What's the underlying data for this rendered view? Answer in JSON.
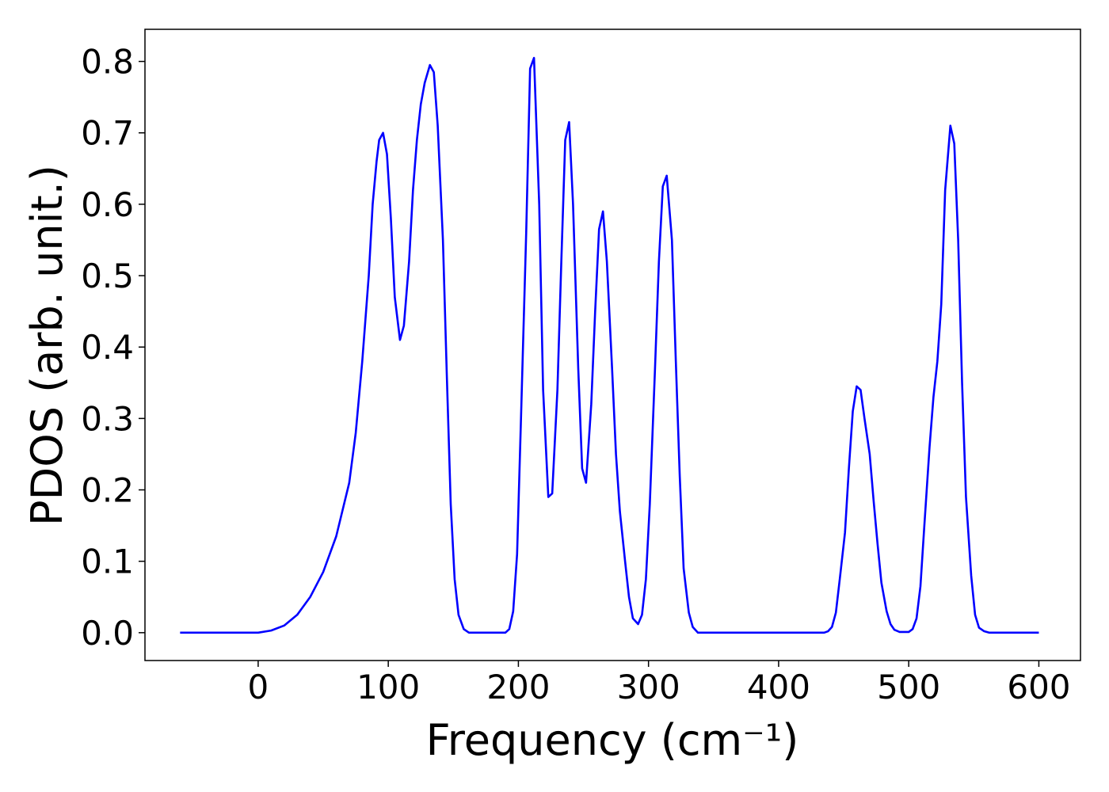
{
  "chart_data": {
    "type": "line",
    "xlabel": "Frequency (cm⁻¹)",
    "ylabel": "PDOS (arb. unit.)",
    "xlim": [
      -87,
      632
    ],
    "ylim": [
      -0.039,
      0.845
    ],
    "xticks": [
      0,
      100,
      200,
      300,
      400,
      500,
      600
    ],
    "yticks": [
      {
        "value": 0,
        "label": "0.0"
      },
      0.1,
      0.2,
      0.3,
      0.4,
      0.5,
      0.6,
      0.7,
      0.8
    ],
    "grid": false,
    "series": [
      {
        "color": "#0000ff",
        "x": [
          -60,
          0,
          10,
          20,
          30,
          40,
          50,
          60,
          70,
          75,
          80,
          85,
          88,
          91,
          93,
          96,
          99,
          102,
          105,
          109,
          112,
          116,
          119,
          122,
          125,
          128,
          132,
          135,
          138,
          142,
          145,
          148,
          151,
          154,
          158,
          162,
          190,
          193,
          196,
          199,
          202,
          206,
          209,
          212,
          216,
          219,
          223,
          226,
          230,
          233,
          236,
          239,
          242,
          246,
          249,
          252,
          256,
          259,
          262,
          265,
          268,
          272,
          275,
          278,
          282,
          285,
          288,
          292,
          295,
          298,
          301,
          305,
          308,
          311,
          314,
          318,
          321,
          324,
          327,
          331,
          334,
          338,
          435,
          438,
          441,
          444,
          447,
          451,
          454,
          457,
          460,
          463,
          466,
          470,
          473,
          476,
          479,
          483,
          486,
          489,
          493,
          500,
          503,
          506,
          509,
          512,
          516,
          519,
          522,
          525,
          528,
          532,
          535,
          538,
          541,
          544,
          548,
          551,
          554,
          558,
          562,
          600
        ],
        "values": [
          0,
          0,
          0.003,
          0.01,
          0.025,
          0.05,
          0.085,
          0.135,
          0.21,
          0.28,
          0.38,
          0.5,
          0.6,
          0.66,
          0.69,
          0.7,
          0.67,
          0.58,
          0.47,
          0.41,
          0.43,
          0.52,
          0.62,
          0.69,
          0.74,
          0.77,
          0.795,
          0.785,
          0.71,
          0.55,
          0.36,
          0.18,
          0.075,
          0.025,
          0.005,
          0,
          0,
          0.005,
          0.03,
          0.11,
          0.3,
          0.56,
          0.79,
          0.805,
          0.6,
          0.34,
          0.19,
          0.195,
          0.34,
          0.52,
          0.69,
          0.715,
          0.6,
          0.37,
          0.23,
          0.21,
          0.32,
          0.45,
          0.565,
          0.59,
          0.52,
          0.37,
          0.25,
          0.17,
          0.1,
          0.05,
          0.02,
          0.012,
          0.025,
          0.075,
          0.18,
          0.37,
          0.52,
          0.625,
          0.64,
          0.55,
          0.38,
          0.22,
          0.09,
          0.028,
          0.008,
          0,
          0,
          0.002,
          0.008,
          0.028,
          0.075,
          0.14,
          0.23,
          0.31,
          0.345,
          0.34,
          0.3,
          0.25,
          0.185,
          0.125,
          0.07,
          0.03,
          0.012,
          0.004,
          0.001,
          0.001,
          0.005,
          0.02,
          0.065,
          0.15,
          0.26,
          0.33,
          0.38,
          0.46,
          0.62,
          0.71,
          0.685,
          0.55,
          0.35,
          0.19,
          0.08,
          0.025,
          0.007,
          0.002,
          0,
          0
        ]
      }
    ]
  }
}
